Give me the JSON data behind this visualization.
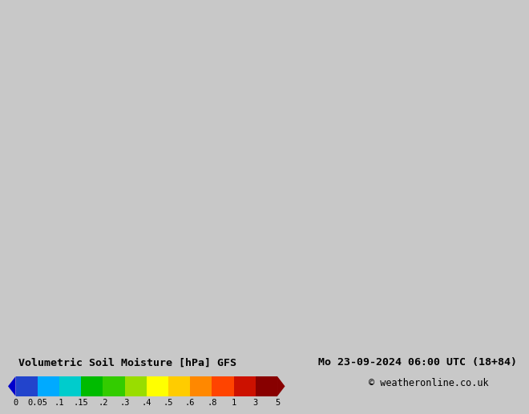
{
  "title_left": "Volumetric Soil Moisture [hPa] GFS",
  "title_right": "Mo 23-09-2024 06:00 UTC (18+84)",
  "copyright": "© weatheronline.co.uk",
  "colorbar_levels": [
    0,
    0.05,
    0.1,
    0.15,
    0.2,
    0.3,
    0.4,
    0.5,
    0.6,
    0.8,
    1.0,
    3.0,
    5.0
  ],
  "colorbar_labels": [
    "0",
    "0.05",
    ".1",
    ".15",
    ".2",
    ".3",
    ".4",
    ".5",
    ".6",
    ".8",
    "1",
    "3",
    "5"
  ],
  "colorbar_colors": [
    "#2244cc",
    "#00aaff",
    "#00cccc",
    "#00bb00",
    "#33cc00",
    "#99dd00",
    "#ffff00",
    "#ffcc00",
    "#ff8800",
    "#ff4400",
    "#cc1100",
    "#880000"
  ],
  "bg_color": "#c8c8c8",
  "ocean_color": "#c8c8c8",
  "land_bg_color": "#b8b8b8",
  "font_color": "#000000",
  "colorbar_arrow_left_color": "#0000cc",
  "colorbar_arrow_right_color": "#880000",
  "title_fontsize": 9.5,
  "copyright_fontsize": 8.5,
  "label_fontsize": 7.5,
  "bottom_bar_height": 0.115
}
